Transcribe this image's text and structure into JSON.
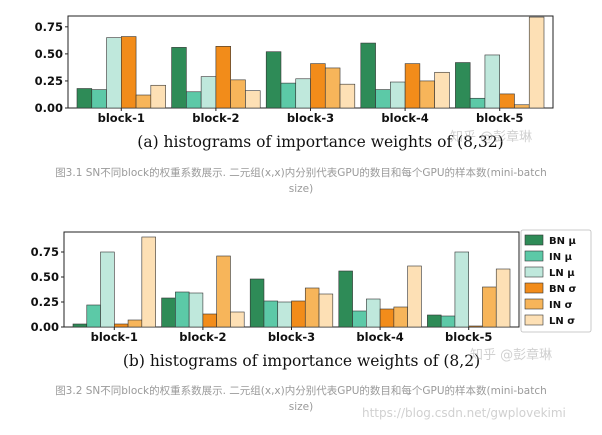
{
  "colors": {
    "BN μ": "#2e8b57",
    "IN μ": "#5cc9a7",
    "LN μ": "#bfe8dc",
    "BN σ": "#f28c1a",
    "IN σ": "#f7b55a",
    "LN σ": "#fde0b5"
  },
  "chart_data": [
    {
      "type": "bar",
      "title": "(a) histograms of importance weights of (8,32)",
      "categories": [
        "block-1",
        "block-2",
        "block-3",
        "block-4",
        "block-5"
      ],
      "yticks": [
        "0.00",
        "0.25",
        "0.50",
        "0.75"
      ],
      "ylim": [
        0,
        0.85
      ],
      "grid": false,
      "legend": false,
      "series": [
        {
          "name": "BN μ",
          "values": [
            0.18,
            0.56,
            0.52,
            0.6,
            0.42
          ]
        },
        {
          "name": "IN μ",
          "values": [
            0.17,
            0.15,
            0.23,
            0.17,
            0.09
          ]
        },
        {
          "name": "LN μ",
          "values": [
            0.65,
            0.29,
            0.27,
            0.24,
            0.49
          ]
        },
        {
          "name": "BN σ",
          "values": [
            0.66,
            0.57,
            0.41,
            0.41,
            0.13
          ]
        },
        {
          "name": "IN σ",
          "values": [
            0.12,
            0.26,
            0.37,
            0.25,
            0.03
          ]
        },
        {
          "name": "LN σ",
          "values": [
            0.21,
            0.16,
            0.22,
            0.33,
            0.84
          ]
        }
      ]
    },
    {
      "type": "bar",
      "title": "(b) histograms of importance weights of (8,2)",
      "categories": [
        "block-1",
        "block-2",
        "block-3",
        "block-4",
        "block-5"
      ],
      "yticks": [
        "0.00",
        "0.25",
        "0.50",
        "0.75"
      ],
      "ylim": [
        0,
        0.95
      ],
      "grid": false,
      "legend": "right",
      "series": [
        {
          "name": "BN μ",
          "values": [
            0.03,
            0.29,
            0.48,
            0.56,
            0.12
          ]
        },
        {
          "name": "IN μ",
          "values": [
            0.22,
            0.35,
            0.26,
            0.16,
            0.11
          ]
        },
        {
          "name": "LN μ",
          "values": [
            0.75,
            0.34,
            0.25,
            0.28,
            0.75
          ]
        },
        {
          "name": "BN σ",
          "values": [
            0.03,
            0.13,
            0.26,
            0.18,
            0.01
          ]
        },
        {
          "name": "IN σ",
          "values": [
            0.07,
            0.71,
            0.39,
            0.2,
            0.4
          ]
        },
        {
          "name": "LN σ",
          "values": [
            0.9,
            0.15,
            0.33,
            0.61,
            0.58
          ]
        }
      ]
    }
  ],
  "figure_captions": {
    "fig1_line1": "图3.1 SN不同block的权重系数展示. 二元组(x,x)内分别代表GPU的数目和每个GPU的样本数(mini-batch",
    "fig1_line2": "size)",
    "fig2_line1": "图3.2 SN不同block的权重系数展示. 二元组(x,x)内分别代表GPU的数目和每个GPU的样本数(mini-batch",
    "fig2_line2": "size)"
  },
  "watermarks": {
    "zhihu_1": "知乎 @彭章琳",
    "zhihu_2": "知乎 @彭章琳",
    "csdn": "https://blog.csdn.net/gwplovekimi"
  }
}
